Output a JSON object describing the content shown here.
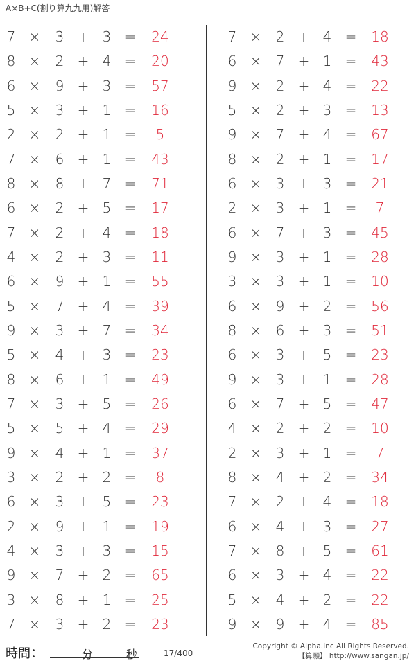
{
  "title": "A×B+C(割り算九九用)解答",
  "operators": {
    "times": "×",
    "plus": "+",
    "equals": "="
  },
  "colors": {
    "answer": "#e0283a",
    "text": "#333333"
  },
  "left": [
    [
      7,
      3,
      3,
      24
    ],
    [
      8,
      2,
      4,
      20
    ],
    [
      6,
      9,
      3,
      57
    ],
    [
      5,
      3,
      1,
      16
    ],
    [
      2,
      2,
      1,
      5
    ],
    [
      7,
      6,
      1,
      43
    ],
    [
      8,
      8,
      7,
      71
    ],
    [
      6,
      2,
      5,
      17
    ],
    [
      7,
      2,
      4,
      18
    ],
    [
      4,
      2,
      3,
      11
    ],
    [
      6,
      9,
      1,
      55
    ],
    [
      5,
      7,
      4,
      39
    ],
    [
      9,
      3,
      7,
      34
    ],
    [
      5,
      4,
      3,
      23
    ],
    [
      8,
      6,
      1,
      49
    ],
    [
      7,
      3,
      5,
      26
    ],
    [
      5,
      5,
      4,
      29
    ],
    [
      9,
      4,
      1,
      37
    ],
    [
      3,
      2,
      2,
      8
    ],
    [
      6,
      3,
      5,
      23
    ],
    [
      2,
      9,
      1,
      19
    ],
    [
      4,
      3,
      3,
      15
    ],
    [
      9,
      7,
      2,
      65
    ],
    [
      3,
      8,
      1,
      25
    ],
    [
      7,
      3,
      2,
      23
    ]
  ],
  "right": [
    [
      7,
      2,
      4,
      18
    ],
    [
      6,
      7,
      1,
      43
    ],
    [
      9,
      2,
      4,
      22
    ],
    [
      5,
      2,
      3,
      13
    ],
    [
      9,
      7,
      4,
      67
    ],
    [
      8,
      2,
      1,
      17
    ],
    [
      6,
      3,
      3,
      21
    ],
    [
      2,
      3,
      1,
      7
    ],
    [
      6,
      7,
      3,
      45
    ],
    [
      9,
      3,
      1,
      28
    ],
    [
      3,
      3,
      1,
      10
    ],
    [
      6,
      9,
      2,
      56
    ],
    [
      8,
      6,
      3,
      51
    ],
    [
      6,
      3,
      5,
      23
    ],
    [
      9,
      3,
      1,
      28
    ],
    [
      6,
      7,
      5,
      47
    ],
    [
      4,
      2,
      2,
      10
    ],
    [
      2,
      3,
      1,
      7
    ],
    [
      8,
      4,
      2,
      34
    ],
    [
      7,
      2,
      4,
      18
    ],
    [
      6,
      4,
      3,
      27
    ],
    [
      7,
      8,
      5,
      61
    ],
    [
      6,
      3,
      4,
      22
    ],
    [
      5,
      4,
      2,
      22
    ],
    [
      9,
      9,
      4,
      85
    ]
  ],
  "footer": {
    "time_label": "時間：",
    "minutes": "分",
    "seconds": "秒",
    "page": "17/400",
    "copyright": "Copyright © Alpha.Inc All Rights Reserved.",
    "site": "【算願】 http://www.sangan.jp/"
  }
}
